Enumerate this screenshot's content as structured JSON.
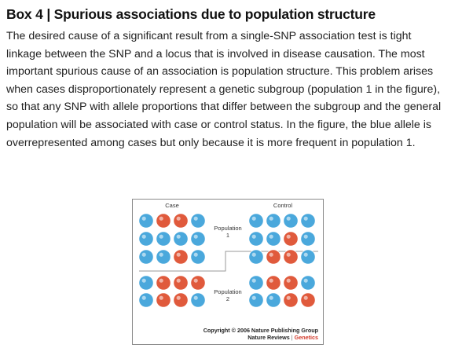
{
  "box": {
    "title": "Box 4 | Spurious associations due to population structure",
    "paragraph": "The desired cause of a significant result from a single-SNP association test is tight linkage between the SNP and a locus that is involved in disease causation. The most important spurious cause of an association is population structure. This problem arises when cases disproportionately represent a genetic subgroup (population 1 in the figure), so that any SNP with allele proportions that differ between the subgroup and the general population will be associated with case or control status. In the figure, the blue allele is overrepresented among cases but only because it is more frequent in population 1."
  },
  "figure": {
    "case_label": "Case",
    "control_label": "Control",
    "population1_label": "Population",
    "population1_number": "1",
    "population2_label": "Population",
    "population2_number": "2",
    "colors": {
      "blue": "#4aa8dc",
      "red": "#e05a3c",
      "divider": "#999999"
    },
    "case_grid": [
      [
        "blue",
        "red",
        "red",
        "blue"
      ],
      [
        "blue",
        "blue",
        "blue",
        "blue"
      ],
      [
        "blue",
        "blue",
        "red",
        "blue"
      ],
      [
        "blue",
        "red",
        "red",
        "red"
      ],
      [
        "blue",
        "red",
        "red",
        "blue"
      ]
    ],
    "control_grid": [
      [
        "blue",
        "blue",
        "blue",
        "blue"
      ],
      [
        "blue",
        "blue",
        "red",
        "blue"
      ],
      [
        "blue",
        "red",
        "red",
        "blue"
      ],
      [
        "blue",
        "red",
        "red",
        "blue"
      ],
      [
        "blue",
        "blue",
        "red",
        "red"
      ]
    ],
    "copyright_line": "Copyright © 2006 Nature Publishing Group",
    "journal": "Nature Reviews",
    "journal_separator": "|",
    "journal_section": "Genetics"
  }
}
